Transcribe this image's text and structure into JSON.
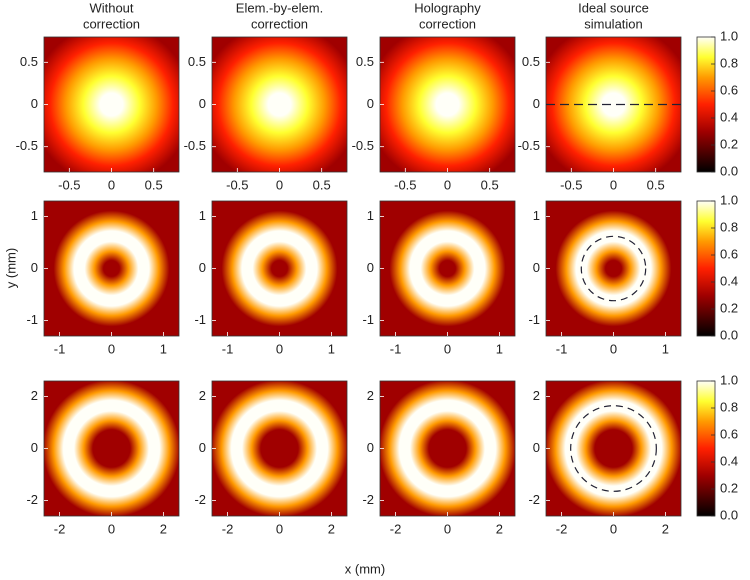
{
  "column_titles": [
    [
      "Without",
      "correction"
    ],
    [
      "Elem.-by-elem.",
      "correction"
    ],
    [
      "Holography",
      "correction"
    ],
    [
      "Ideal source",
      "simulation"
    ]
  ],
  "x_label": "x (mm)",
  "y_label": "y (mm)",
  "chart_data": [
    {
      "type": "heatmap",
      "xlim": [
        -0.8,
        0.8
      ],
      "ylim": [
        -0.8,
        0.8
      ],
      "xticks": [
        -0.5,
        0,
        0.5
      ],
      "yticks": [
        -0.5,
        0,
        0.5
      ],
      "overlay": {
        "x": [
          -0.8,
          0.8
        ],
        "y": [
          0,
          0
        ]
      },
      "colorbar": {
        "lim": [
          0,
          1
        ],
        "ticks": [
          {
            "value": 0,
            "label": "0.0"
          },
          0.2,
          0.4,
          0.6,
          0.8,
          {
            "value": 1,
            "label": "1.0"
          }
        ]
      }
    },
    {
      "type": "heatmap",
      "xlim": [
        -1.3,
        1.3
      ],
      "ylim": [
        -1.3,
        1.3
      ],
      "xticks": [
        -1,
        0,
        1
      ],
      "yticks": [
        -1,
        0,
        1
      ],
      "overlay": {
        "radius": 0.62
      },
      "colorbar": {
        "lim": [
          0,
          1
        ],
        "ticks": [
          {
            "value": 0,
            "label": "0.0"
          },
          0.2,
          0.4,
          0.6,
          0.8,
          {
            "value": 1,
            "label": "1.0"
          }
        ]
      }
    },
    {
      "type": "heatmap",
      "xlim": [
        -2.6,
        2.6
      ],
      "ylim": [
        -2.6,
        2.6
      ],
      "xticks": [
        -2,
        0,
        2
      ],
      "yticks": [
        -2,
        0,
        2
      ],
      "overlay": {
        "radius": 1.65
      },
      "colorbar": {
        "lim": [
          0,
          1
        ],
        "ticks": [
          {
            "value": 0,
            "label": "0.0"
          },
          0.2,
          0.4,
          0.6,
          0.8,
          {
            "value": 1,
            "label": "1.0"
          }
        ]
      }
    }
  ]
}
